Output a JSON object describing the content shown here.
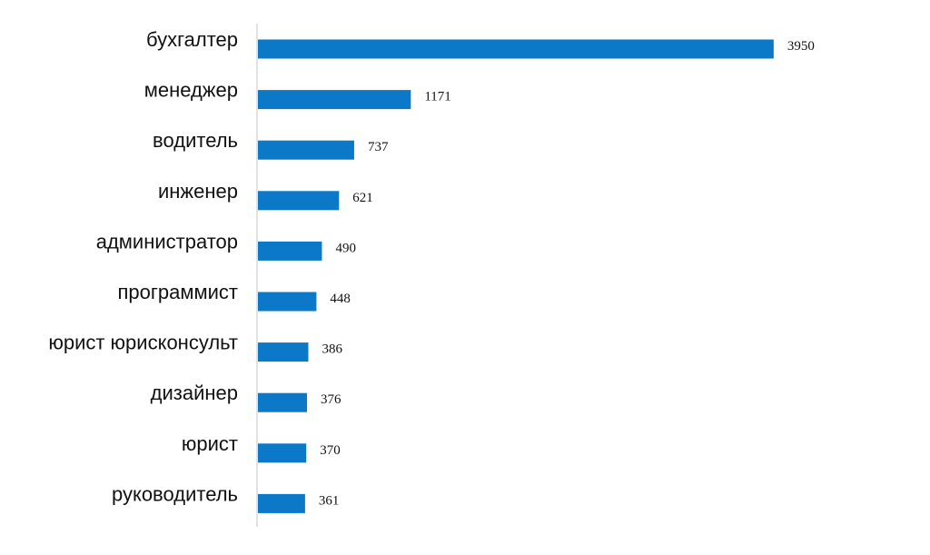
{
  "chart_data": {
    "type": "bar",
    "orientation": "horizontal",
    "categories": [
      "бухгалтер",
      "менеджер",
      "водитель",
      "инженер",
      "администратор",
      "программист",
      "юрист юрисконсульт",
      "дизайнер",
      "юрист",
      "руководитель"
    ],
    "values": [
      3950,
      1171,
      737,
      621,
      490,
      448,
      386,
      376,
      370,
      361
    ],
    "value_labels": [
      "3950",
      "1171",
      "737",
      "621",
      "490",
      "448",
      "386",
      "376",
      "370",
      "361"
    ],
    "bar_color": "#0b78c8",
    "axis_color": "#d9d9d9",
    "xlim": [
      0,
      4250
    ],
    "grid": false,
    "legend": "none"
  }
}
